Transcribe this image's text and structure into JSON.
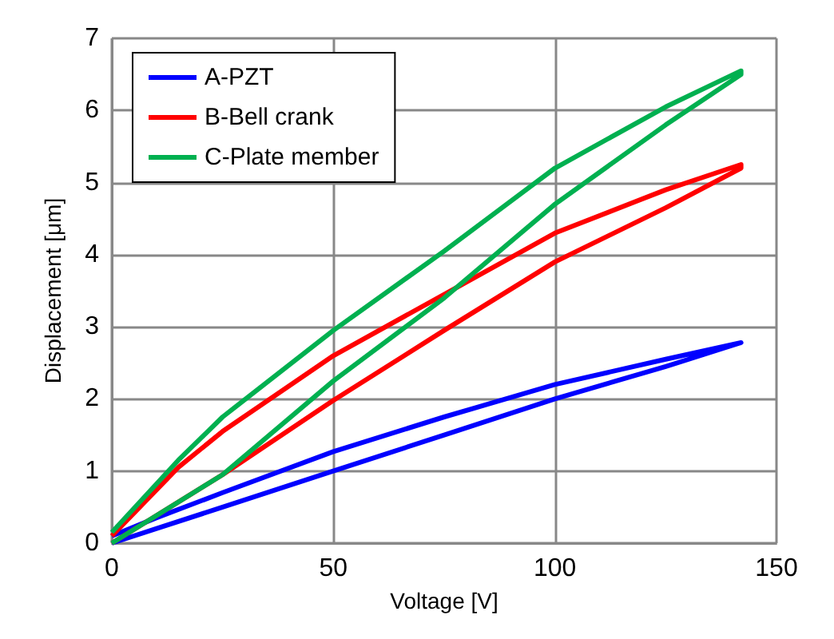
{
  "chart_data": {
    "type": "line",
    "xlabel": "Voltage [V]",
    "ylabel": "Displacement [μm]",
    "xlim": [
      0,
      150
    ],
    "xticks": [
      0,
      50,
      100,
      150
    ],
    "ylim": [
      0,
      7
    ],
    "yticks": [
      0,
      1,
      2,
      3,
      4,
      5,
      6,
      7
    ],
    "grid": true,
    "legend": "top left",
    "marker": "none",
    "line_style": "solid",
    "series": [
      {
        "name": "A-PZT",
        "color": "#0000ff",
        "x": [
          0,
          10,
          25,
          50,
          75,
          100,
          125,
          142,
          125,
          100,
          75,
          50,
          25,
          10,
          0
        ],
        "values": [
          0,
          0.2,
          0.5,
          1.0,
          1.5,
          2.0,
          2.45,
          2.78,
          2.55,
          2.2,
          1.75,
          1.27,
          0.7,
          0.35,
          0.1
        ]
      },
      {
        "name": "B-Bell crank",
        "color": "#ff0000",
        "x": [
          0,
          25,
          50,
          75,
          100,
          125,
          142,
          142,
          125,
          100,
          75,
          50,
          25,
          15,
          0
        ],
        "values": [
          0,
          0.95,
          1.98,
          2.95,
          3.9,
          4.65,
          5.2,
          5.25,
          4.9,
          4.3,
          3.45,
          2.6,
          1.55,
          1.05,
          0.1
        ]
      },
      {
        "name": "C-Plate member",
        "color": "#00b050",
        "x": [
          0,
          25,
          50,
          75,
          100,
          125,
          142,
          142,
          125,
          100,
          75,
          50,
          25,
          15,
          0
        ],
        "values": [
          0,
          0.95,
          2.25,
          3.4,
          4.7,
          5.8,
          6.5,
          6.55,
          6.05,
          5.2,
          4.05,
          2.95,
          1.75,
          1.15,
          0.15
        ]
      }
    ]
  }
}
